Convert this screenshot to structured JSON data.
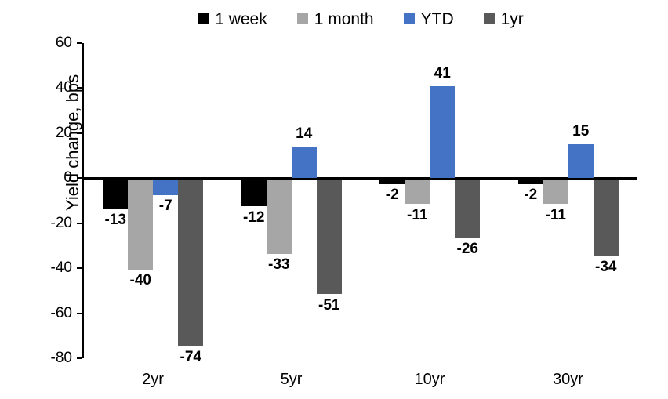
{
  "chart_data": {
    "type": "bar",
    "title": "",
    "ylabel": "Yield change, bps",
    "xlabel": "",
    "categories": [
      "2yr",
      "5yr",
      "10yr",
      "30yr"
    ],
    "series": [
      {
        "name": "1 week",
        "color": "#000000",
        "values": [
          -13,
          -12,
          -2,
          -2
        ]
      },
      {
        "name": "1 month",
        "color": "#a6a6a6",
        "values": [
          -40,
          -33,
          -11,
          -11
        ]
      },
      {
        "name": "YTD",
        "color": "#4472c4",
        "values": [
          -7,
          14,
          41,
          15
        ]
      },
      {
        "name": "1yr",
        "color": "#595959",
        "values": [
          -74,
          -51,
          -26,
          -34
        ]
      }
    ],
    "ylim": [
      -80,
      60
    ],
    "yticks": [
      60,
      40,
      20,
      0,
      -20,
      -40,
      -60,
      -80
    ],
    "grid": false,
    "legend_position": "top",
    "data_labels": true,
    "axis_color": "#000000",
    "background_color": "#ffffff"
  }
}
